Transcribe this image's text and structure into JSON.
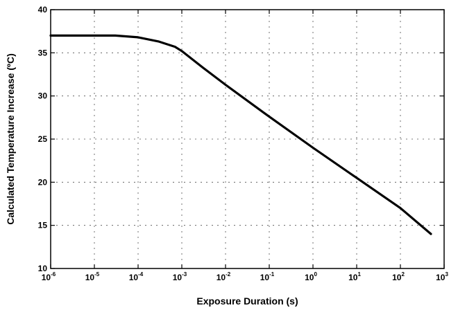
{
  "chart_data": {
    "type": "line",
    "title": "",
    "xlabel": "Exposure Duration (s)",
    "ylabel": "Calculated Temperature Increase (ºC)",
    "x_scale": "log",
    "xlim": [
      1e-06,
      1000
    ],
    "ylim": [
      10,
      40
    ],
    "grid": true,
    "x_ticks": [
      {
        "base": "10",
        "exp": "-6"
      },
      {
        "base": "10",
        "exp": "-5"
      },
      {
        "base": "10",
        "exp": "-4"
      },
      {
        "base": "10",
        "exp": "-3"
      },
      {
        "base": "10",
        "exp": "-2"
      },
      {
        "base": "10",
        "exp": "-1"
      },
      {
        "base": "10",
        "exp": "0"
      },
      {
        "base": "10",
        "exp": "1"
      },
      {
        "base": "10",
        "exp": "2"
      },
      {
        "base": "10",
        "exp": "3"
      }
    ],
    "y_ticks": [
      "10",
      "15",
      "20",
      "25",
      "30",
      "35",
      "40"
    ],
    "series": [
      {
        "x": [
          1e-06,
          1e-05,
          3e-05,
          0.0001,
          0.0003,
          0.0007,
          0.001,
          0.003,
          0.01,
          0.1,
          1,
          10,
          100,
          500
        ],
        "y": [
          37.0,
          37.0,
          37.0,
          36.8,
          36.3,
          35.7,
          35.2,
          33.3,
          31.3,
          27.6,
          24.0,
          20.5,
          17.0,
          14.0
        ]
      }
    ]
  }
}
